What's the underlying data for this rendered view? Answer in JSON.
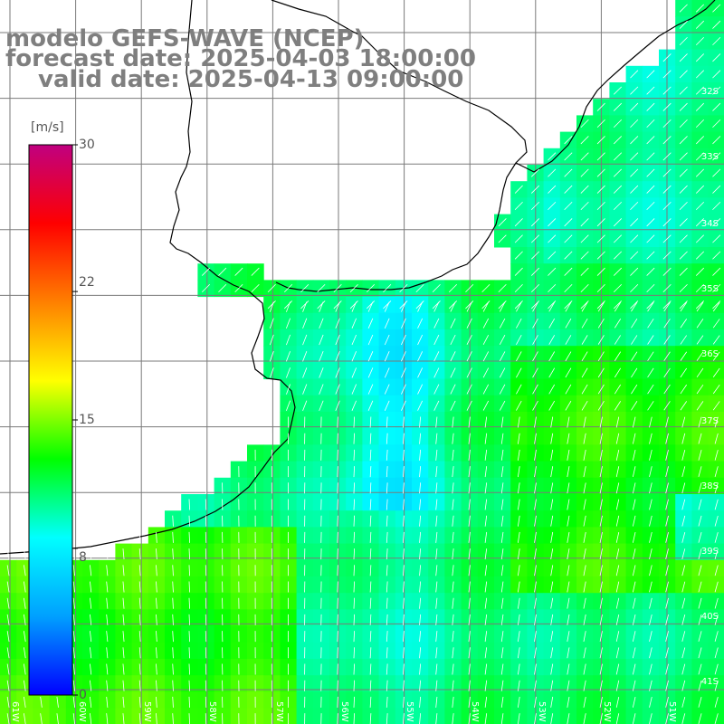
{
  "title": {
    "line1": "modelo GEFS-WAVE (NCEP)",
    "line2": "forecast date: 2025-04-03 18:00:00",
    "line3": "valid date: 2025-04-13 09:00:00"
  },
  "colorbar": {
    "unit": "[m/s]",
    "ticks": [
      "30",
      "22",
      "15",
      "8",
      "0"
    ],
    "tick_values": [
      30,
      22,
      15,
      8,
      0
    ],
    "colors": [
      "#0000ff",
      "#00a0ff",
      "#00ffff",
      "#00ff00",
      "#ffff00",
      "#ff8000",
      "#ff0000",
      "#c00080"
    ]
  },
  "lat_labels": [
    "32S",
    "33S",
    "34S",
    "35S",
    "36S",
    "37S",
    "38S",
    "39S",
    "40S",
    "41S"
  ],
  "lon_labels": [
    "61W",
    "60W",
    "59W",
    "58W",
    "57W",
    "56W",
    "55W",
    "54W",
    "53W",
    "52W",
    "51W"
  ],
  "colors": {
    "land": "#ffffff",
    "grid": "#7a7a7a",
    "coast": "#000000",
    "arrows": "#ffffff",
    "title": "#7f7f7f"
  }
}
